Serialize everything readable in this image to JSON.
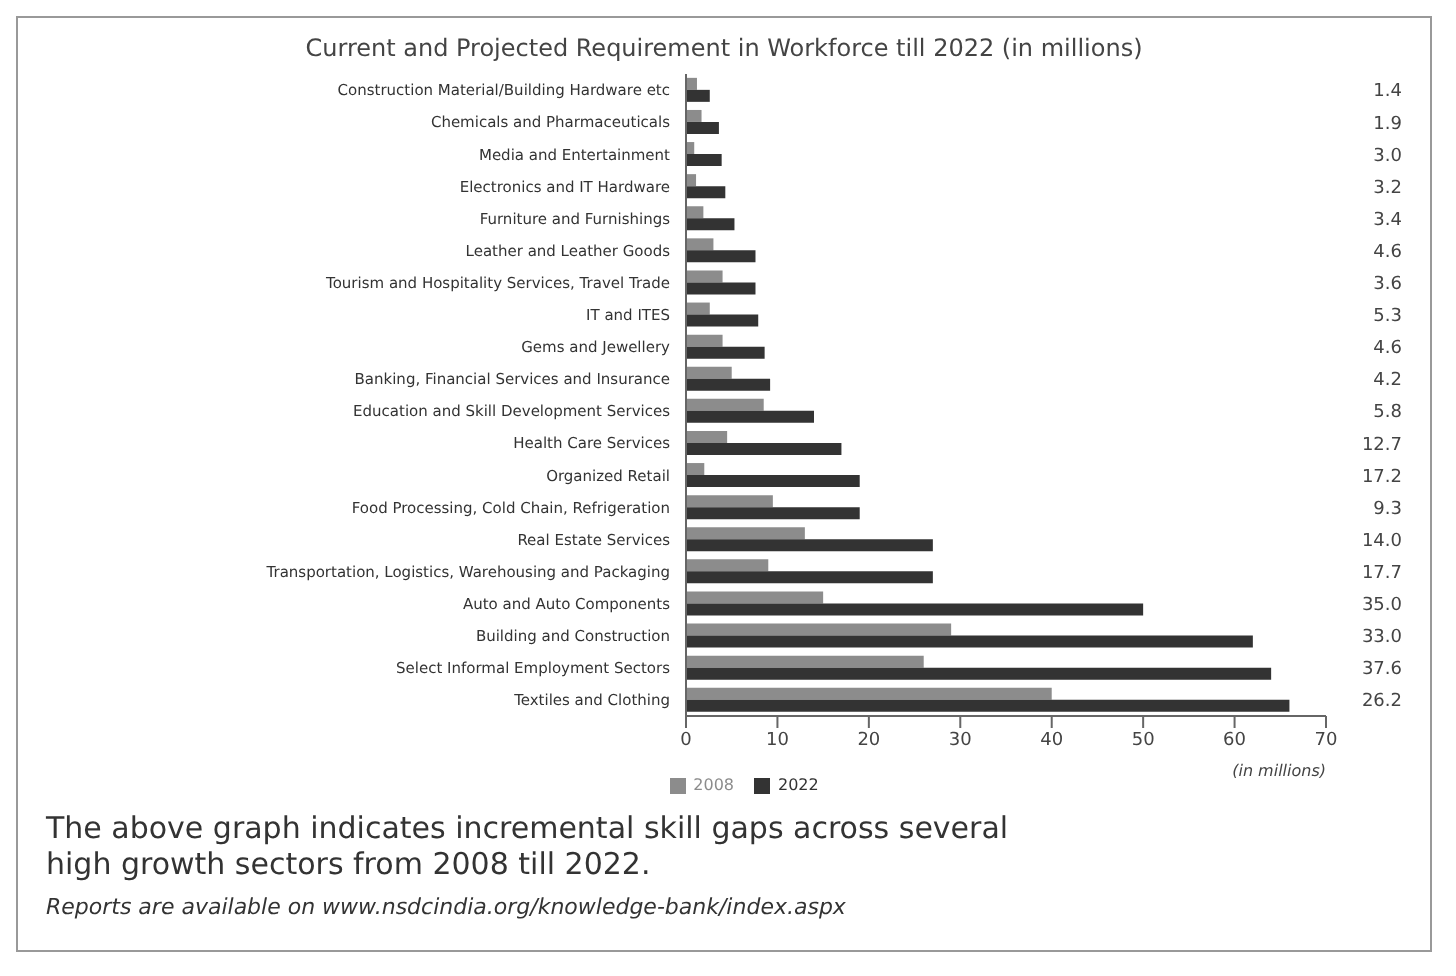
{
  "chart_data": {
    "type": "bar",
    "orientation": "horizontal",
    "title": "Current and Projected Requirement in Workforce till 2022 (in millions)",
    "xlabel": "(in millions)",
    "categories": [
      "Construction Material/Building Hardware etc",
      "Chemicals and Pharmaceuticals",
      "Media and Entertainment",
      "Electronics and IT Hardware",
      "Furniture and Furnishings",
      "Leather and Leather Goods",
      "Tourism and Hospitality Services, Travel Trade",
      "IT and ITES",
      "Gems and Jewellery",
      "Banking, Financial Services and Insurance",
      "Education and Skill Development Services",
      "Health Care Services",
      "Organized Retail",
      "Food Processing, Cold Chain, Refrigeration",
      "Real Estate Services",
      "Transportation, Logistics, Warehousing and Packaging",
      "Auto and Auto Components",
      "Building and Construction",
      "Select Informal Employment Sectors",
      "Textiles and Clothing"
    ],
    "series": [
      {
        "name": "2008",
        "color": "#8c8c8c",
        "values": [
          1.2,
          1.7,
          0.9,
          1.1,
          1.9,
          3,
          4,
          2.6,
          4,
          5,
          8.5,
          4.5,
          2,
          9.5,
          13,
          9,
          15,
          29,
          26,
          40
        ]
      },
      {
        "name": "2022",
        "color": "#333333",
        "values": [
          2.6,
          3.6,
          3.9,
          4.3,
          5.3,
          7.6,
          7.6,
          7.9,
          8.6,
          9.2,
          14,
          17,
          19,
          19,
          27,
          27,
          50,
          62,
          64,
          66
        ]
      }
    ],
    "xlim": [
      0,
      70
    ],
    "xticks": [
      0,
      10,
      20,
      30,
      40,
      50,
      60,
      70
    ],
    "legend": "bottom",
    "annotations": [
      "1.4",
      "1.9",
      "3.0",
      "3.2",
      "3.4",
      "4.6",
      "3.6",
      "5.3",
      "4.6",
      "4.2",
      "5.8",
      "12.7",
      "17.2",
      "9.3",
      "14.0",
      "17.7",
      "35.0",
      "33.0",
      "37.6",
      "26.2",
      "The above graph indicates incremental skill gaps across several high growth sectors from 2008 till 2022.",
      "Reports are available on www.nsdcindia.org/knowledge-bank/index.aspx"
    ]
  }
}
